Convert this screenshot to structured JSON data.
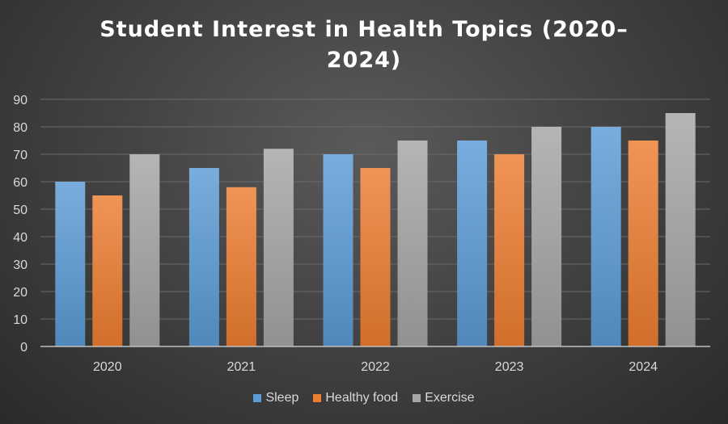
{
  "chart_data": {
    "type": "bar",
    "title": "Student Interest in Health Topics (2020–2024)",
    "xlabel": "",
    "ylabel": "",
    "categories": [
      "2020",
      "2021",
      "2022",
      "2023",
      "2024"
    ],
    "series": [
      {
        "name": "Sleep",
        "values": [
          60,
          65,
          70,
          75,
          80
        ],
        "color": "#5b9bd5"
      },
      {
        "name": "Healthy food",
        "values": [
          55,
          58,
          65,
          70,
          75
        ],
        "color": "#ed7d31"
      },
      {
        "name": "Exercise",
        "values": [
          70,
          72,
          75,
          80,
          85
        ],
        "color": "#a5a5a5"
      }
    ],
    "ylim": [
      0,
      90
    ],
    "yticks": [
      0,
      10,
      20,
      30,
      40,
      50,
      60,
      70,
      80,
      90
    ],
    "grid": true,
    "legend_position": "bottom"
  }
}
